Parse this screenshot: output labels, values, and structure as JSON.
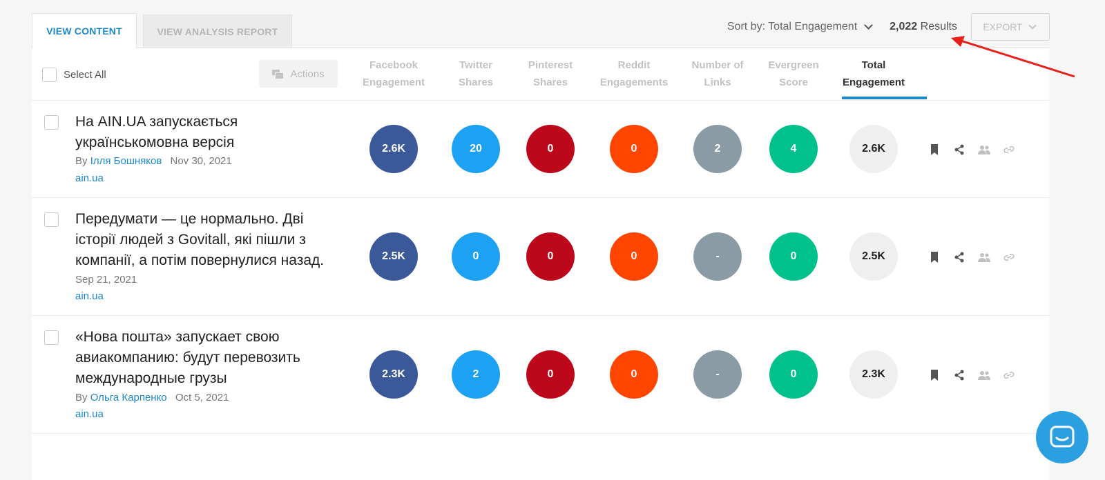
{
  "tabs": {
    "view_content": "VIEW CONTENT",
    "view_analysis": "VIEW ANALYSIS REPORT"
  },
  "toolbar": {
    "sort_label": "Sort by: Total Engagement",
    "results_count": "2,022",
    "results_label": "Results",
    "export_label": "EXPORT"
  },
  "header": {
    "select_all": "Select All",
    "actions": "Actions",
    "columns": [
      {
        "line1": "Facebook",
        "line2": "Engagement"
      },
      {
        "line1": "Twitter",
        "line2": "Shares"
      },
      {
        "line1": "Pinterest",
        "line2": "Shares"
      },
      {
        "line1": "Reddit",
        "line2": "Engagements"
      },
      {
        "line1": "Number of",
        "line2": "Links"
      },
      {
        "line1": "Evergreen",
        "line2": "Score"
      },
      {
        "line1": "Total",
        "line2": "Engagement"
      }
    ]
  },
  "rows": [
    {
      "title": "На AIN.UA запускається українськомовна версія",
      "by": "By",
      "author": "Ілля Бошняков",
      "date": "Nov 30, 2021",
      "domain": "ain.ua",
      "facebook": "2.6K",
      "twitter": "20",
      "pinterest": "0",
      "reddit": "0",
      "links": "2",
      "evergreen": "4",
      "total": "2.6K"
    },
    {
      "title": "Передумати — це нормально. Дві історії людей з Govitall, які пішли з компанії, а потім повернулися назад.",
      "by": "",
      "author": "",
      "date": "Sep 21, 2021",
      "domain": "ain.ua",
      "facebook": "2.5K",
      "twitter": "0",
      "pinterest": "0",
      "reddit": "0",
      "links": "-",
      "evergreen": "0",
      "total": "2.5K"
    },
    {
      "title": "«Нова пошта» запускает свою авиакомпанию: будут перевозить международные грузы",
      "by": "By",
      "author": "Ольга Карпенко",
      "date": "Oct 5, 2021",
      "domain": "ain.ua",
      "facebook": "2.3K",
      "twitter": "2",
      "pinterest": "0",
      "reddit": "0",
      "links": "-",
      "evergreen": "0",
      "total": "2.3K"
    }
  ],
  "row_icons": [
    "bookmark-icon",
    "share-icon",
    "users-icon",
    "link-icon"
  ],
  "colors": {
    "accent": "#1e88c8",
    "facebook": "#3b5998",
    "twitter": "#1da1f2",
    "pinterest": "#bd081c",
    "reddit": "#ff4500",
    "links": "#8a9ba6",
    "evergreen": "#00c08b",
    "annotation_arrow": "#e8201c"
  }
}
